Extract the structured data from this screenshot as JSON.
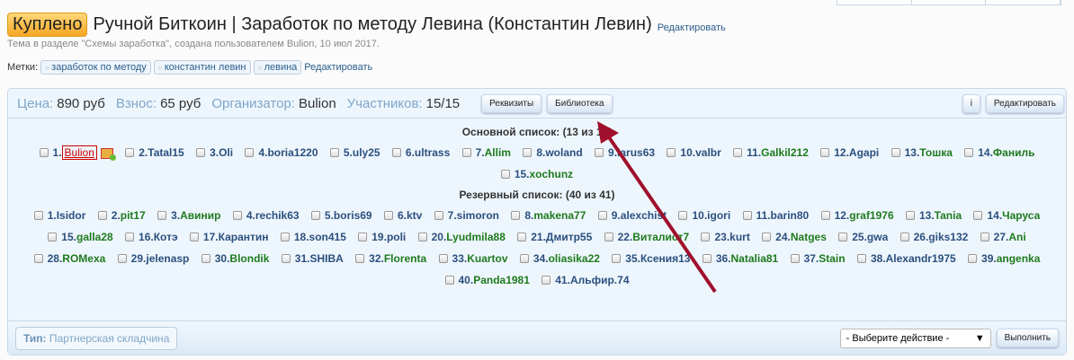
{
  "header": {
    "badge": "Куплено",
    "title": "Ручной Биткоин | Заработок по методу Левина (Константин Левин)",
    "edit": "Редактировать",
    "meta": "Тема в разделе \"Схемы заработка\", создана пользователем Bulion, 10 июл 2017."
  },
  "tags": {
    "label": "Метки:",
    "items": [
      "заработок по методу",
      "константин левин",
      "левина"
    ],
    "edit": "Редактировать"
  },
  "panel": {
    "price_label": "Цена:",
    "price": "890 руб",
    "fee_label": "Взнос:",
    "fee": "65 руб",
    "org_label": "Организатор:",
    "org": "Bulion",
    "members_label": "Участников:",
    "members": "15/15",
    "btn_requisites": "Реквизиты",
    "btn_library": "Библиотека",
    "btn_info": "i",
    "btn_edit": "Редактировать"
  },
  "main_list": {
    "title": "Основной список: (13 из 15)",
    "items": [
      {
        "n": "1.",
        "name": "Bulion",
        "c": "org"
      },
      {
        "n": "2.",
        "name": "Tatal15",
        "c": "blue"
      },
      {
        "n": "3.",
        "name": "Oli",
        "c": "blue"
      },
      {
        "n": "4.",
        "name": "boria1220",
        "c": "blue"
      },
      {
        "n": "5.",
        "name": "uly25",
        "c": "blue"
      },
      {
        "n": "6.",
        "name": "ultrass",
        "c": "blue"
      },
      {
        "n": "7.",
        "name": "Allim",
        "c": "green"
      },
      {
        "n": "8.",
        "name": "woland",
        "c": "blue"
      },
      {
        "n": "9.",
        "name": "larus63",
        "c": "blue"
      },
      {
        "n": "10.",
        "name": "valbr",
        "c": "blue"
      },
      {
        "n": "11.",
        "name": "Galkil212",
        "c": "green"
      },
      {
        "n": "12.",
        "name": "Agapi",
        "c": "blue"
      },
      {
        "n": "13.",
        "name": "Тошка",
        "c": "green"
      },
      {
        "n": "14.",
        "name": "Фаниль",
        "c": "green"
      },
      {
        "n": "15.",
        "name": "xochunz",
        "c": "green"
      }
    ]
  },
  "reserve_list": {
    "title": "Резервный список: (40 из 41)",
    "items": [
      {
        "n": "1.",
        "name": "Isidor",
        "c": "blue"
      },
      {
        "n": "2.",
        "name": "pit17",
        "c": "green"
      },
      {
        "n": "3.",
        "name": "Авинир",
        "c": "green"
      },
      {
        "n": "4.",
        "name": "rechik63",
        "c": "blue"
      },
      {
        "n": "5.",
        "name": "boris69",
        "c": "blue"
      },
      {
        "n": "6.",
        "name": "ktv",
        "c": "blue"
      },
      {
        "n": "7.",
        "name": "simoron",
        "c": "blue"
      },
      {
        "n": "8.",
        "name": "makena77",
        "c": "green"
      },
      {
        "n": "9.",
        "name": "alexchist",
        "c": "blue"
      },
      {
        "n": "10.",
        "name": "igori",
        "c": "blue"
      },
      {
        "n": "11.",
        "name": "barin80",
        "c": "blue"
      },
      {
        "n": "12.",
        "name": "graf1976",
        "c": "green"
      },
      {
        "n": "13.",
        "name": "Tania",
        "c": "green"
      },
      {
        "n": "14.",
        "name": "Чаруса",
        "c": "green"
      },
      {
        "n": "15.",
        "name": "galla28",
        "c": "green"
      },
      {
        "n": "16.",
        "name": "Котэ",
        "c": "blue"
      },
      {
        "n": "17.",
        "name": "Карантин",
        "c": "blue"
      },
      {
        "n": "18.",
        "name": "son415",
        "c": "blue"
      },
      {
        "n": "19.",
        "name": "poli",
        "c": "blue"
      },
      {
        "n": "20.",
        "name": "Lyudmila88",
        "c": "green"
      },
      {
        "n": "21.",
        "name": "Дмитр55",
        "c": "blue"
      },
      {
        "n": "22.",
        "name": "Виталист7",
        "c": "green"
      },
      {
        "n": "23.",
        "name": "kurt",
        "c": "blue"
      },
      {
        "n": "24.",
        "name": "Natges",
        "c": "green"
      },
      {
        "n": "25.",
        "name": "gwa",
        "c": "blue"
      },
      {
        "n": "26.",
        "name": "giks132",
        "c": "blue"
      },
      {
        "n": "27.",
        "name": "Ani",
        "c": "green"
      },
      {
        "n": "28.",
        "name": "ROMexa",
        "c": "green"
      },
      {
        "n": "29.",
        "name": "jelenasp",
        "c": "blue"
      },
      {
        "n": "30.",
        "name": "Blondik",
        "c": "green"
      },
      {
        "n": "31.",
        "name": "SHIBA",
        "c": "blue"
      },
      {
        "n": "32.",
        "name": "Florenta",
        "c": "green"
      },
      {
        "n": "33.",
        "name": "Kuartov",
        "c": "green"
      },
      {
        "n": "34.",
        "name": "oliasika22",
        "c": "green"
      },
      {
        "n": "35.",
        "name": "Ксения13",
        "c": "blue"
      },
      {
        "n": "36.",
        "name": "Natalia81",
        "c": "green"
      },
      {
        "n": "37.",
        "name": "Stain",
        "c": "green"
      },
      {
        "n": "38.",
        "name": "Alexandr1975",
        "c": "blue"
      },
      {
        "n": "39.",
        "name": "angenka",
        "c": "green"
      },
      {
        "n": "40.",
        "name": "Panda1981",
        "c": "green"
      },
      {
        "n": "41.",
        "name": "Альфир.74",
        "c": "blue"
      }
    ]
  },
  "footer": {
    "type_label": "Тип:",
    "type_value": "Партнерская складчина",
    "action_select": "- Выберите действие -",
    "run": "Выполнить"
  },
  "colors": {
    "annotation_arrow": "#a0102c",
    "badge": "#f5a623"
  }
}
